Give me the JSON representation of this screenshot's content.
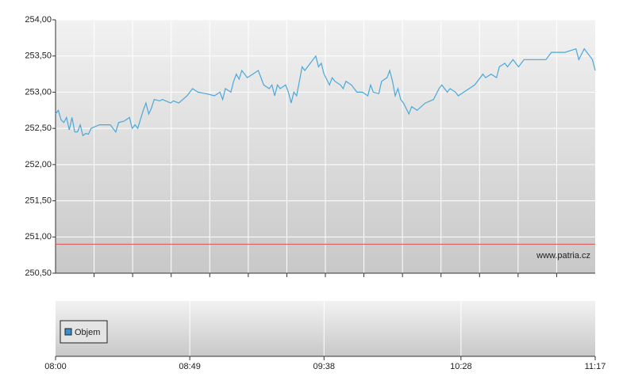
{
  "chart_data": {
    "type": "line",
    "x": [
      "08:00",
      "08:01",
      "08:02",
      "08:03",
      "08:04",
      "08:05",
      "08:06",
      "08:07",
      "08:08",
      "08:09",
      "08:10",
      "08:11",
      "08:12",
      "08:13",
      "08:16",
      "08:20",
      "08:22",
      "08:23",
      "08:25",
      "08:27",
      "08:28",
      "08:29",
      "08:30",
      "08:32",
      "08:33",
      "08:34",
      "08:35",
      "08:36",
      "08:38",
      "08:39",
      "08:42",
      "08:43",
      "08:45",
      "08:48",
      "08:50",
      "08:52",
      "08:55",
      "08:58",
      "09:00",
      "09:01",
      "09:02",
      "09:04",
      "09:05",
      "09:06",
      "09:07",
      "09:08",
      "09:09",
      "09:10",
      "09:12",
      "09:14",
      "09:15",
      "09:16",
      "09:18",
      "09:19",
      "09:20",
      "09:21",
      "09:22",
      "09:24",
      "09:25",
      "09:26",
      "09:27",
      "09:28",
      "09:30",
      "09:31",
      "09:32",
      "09:33",
      "09:35",
      "09:36",
      "09:37",
      "09:38",
      "09:40",
      "09:41",
      "09:42",
      "09:44",
      "09:45",
      "09:46",
      "09:48",
      "09:50",
      "09:52",
      "09:54",
      "09:55",
      "09:56",
      "09:58",
      "09:59",
      "10:01",
      "10:02",
      "10:03",
      "10:04",
      "10:05",
      "10:06",
      "10:07",
      "10:09",
      "10:10",
      "10:12",
      "10:15",
      "10:18",
      "10:20",
      "10:21",
      "10:23",
      "10:24",
      "10:26",
      "10:27",
      "10:29",
      "10:31",
      "10:33",
      "10:34",
      "10:36",
      "10:37",
      "10:39",
      "10:41",
      "10:42",
      "10:44",
      "10:45",
      "10:47",
      "10:48",
      "10:49",
      "10:51",
      "10:59",
      "11:01",
      "11:06",
      "11:10",
      "11:11",
      "11:13",
      "11:14",
      "11:16",
      "11:17"
    ],
    "series": [
      {
        "color": "#4aa8d8",
        "values": [
          252.7,
          252.75,
          252.62,
          252.58,
          252.65,
          252.48,
          252.65,
          252.45,
          252.45,
          252.55,
          252.4,
          252.43,
          252.42,
          252.5,
          252.55,
          252.55,
          252.45,
          252.58,
          252.6,
          252.65,
          252.5,
          252.55,
          252.5,
          252.75,
          252.85,
          252.7,
          252.78,
          252.9,
          252.88,
          252.9,
          252.85,
          252.88,
          252.85,
          252.95,
          253.05,
          253.0,
          252.98,
          252.95,
          253.0,
          252.9,
          253.05,
          253.0,
          253.15,
          253.25,
          253.18,
          253.3,
          253.25,
          253.2,
          253.25,
          253.3,
          253.2,
          253.1,
          253.05,
          253.1,
          252.95,
          253.1,
          253.05,
          253.1,
          253.0,
          252.85,
          253.0,
          252.95,
          253.35,
          253.3,
          253.35,
          253.4,
          253.5,
          253.35,
          253.4,
          253.25,
          253.1,
          253.2,
          253.15,
          253.1,
          253.05,
          253.15,
          253.1,
          253.0,
          253.0,
          252.95,
          253.1,
          253.0,
          252.98,
          253.15,
          253.2,
          253.3,
          253.15,
          252.95,
          253.05,
          252.9,
          252.85,
          252.7,
          252.8,
          252.75,
          252.85,
          252.9,
          253.05,
          253.1,
          253.0,
          253.05,
          253.0,
          252.95,
          253.0,
          253.05,
          253.1,
          253.15,
          253.25,
          253.2,
          253.25,
          253.2,
          253.35,
          253.4,
          253.35,
          253.45,
          253.4,
          253.35,
          253.45,
          253.45,
          253.55,
          253.55,
          253.6,
          253.45,
          253.6,
          253.55,
          253.45,
          253.3
        ]
      }
    ],
    "xlim": [
      "08:00",
      "11:17"
    ],
    "xticks": [
      "08:00",
      "08:49",
      "09:38",
      "10:28",
      "11:17"
    ],
    "ylim": [
      250.5,
      254.0
    ],
    "yticks": [
      {
        "value": 250.5,
        "label": "250,50"
      },
      {
        "value": 251.0,
        "label": "251,00"
      },
      {
        "value": 251.5,
        "label": "251,50"
      },
      {
        "value": 252.0,
        "label": "252,00"
      },
      {
        "value": 252.5,
        "label": "252,50"
      },
      {
        "value": 253.0,
        "label": "253,00"
      },
      {
        "value": 253.5,
        "label": "253,50"
      },
      {
        "value": 254.0,
        "label": "254,00"
      }
    ],
    "grid": true,
    "reference_line": {
      "value": 250.9,
      "color": "#e05050"
    },
    "watermark": "www.patria.cz",
    "volume": {
      "legend": "Objem",
      "color": "#3a8fd0"
    }
  }
}
